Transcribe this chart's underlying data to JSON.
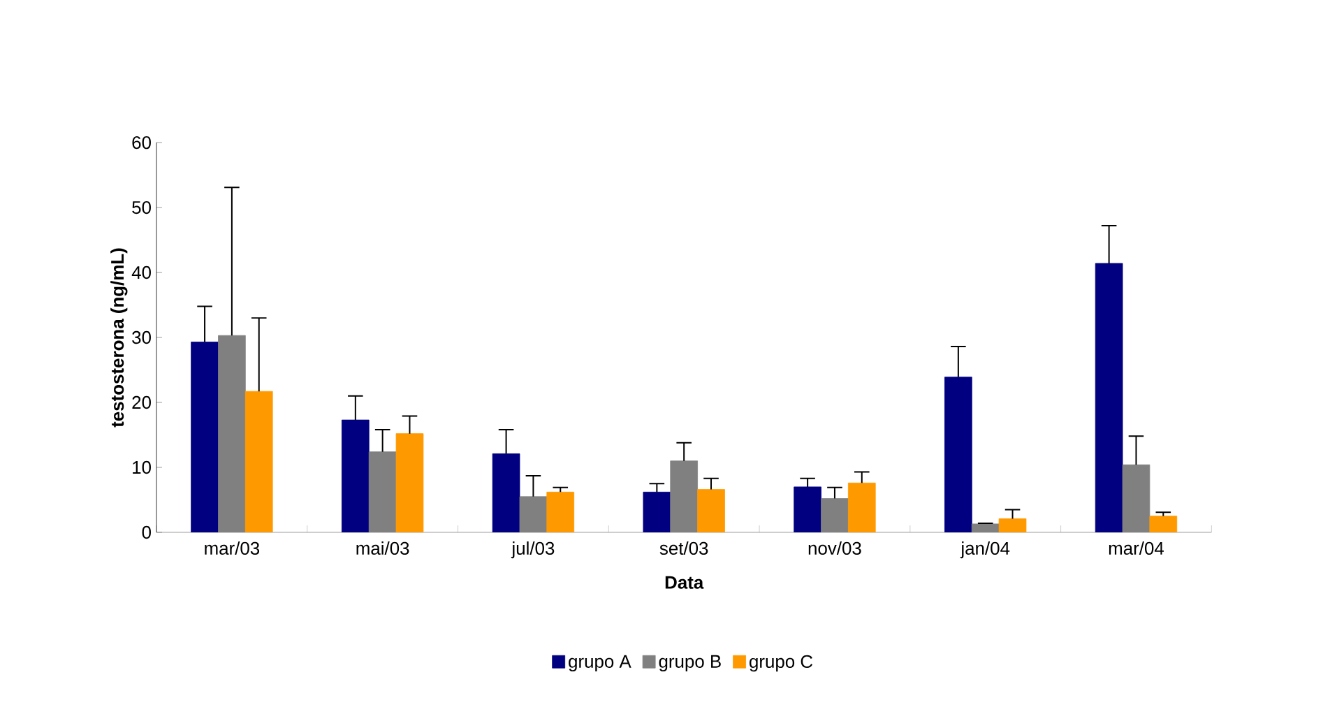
{
  "chart_data": {
    "type": "bar",
    "xlabel": "Data",
    "ylabel": "testosterona (ng/mL)",
    "categories": [
      "mar/03",
      "mai/03",
      "jul/03",
      "set/03",
      "nov/03",
      "jan/04",
      "mar/04"
    ],
    "series": [
      {
        "name": "grupo A",
        "color": "#000080",
        "values": [
          29.3,
          17.3,
          12.1,
          6.2,
          7.0,
          23.9,
          41.4
        ],
        "errors": [
          [
            29.3,
            34.8
          ],
          [
            17.3,
            21.0
          ],
          [
            12.1,
            15.8
          ],
          [
            6.2,
            7.5
          ],
          [
            7.0,
            8.3
          ],
          [
            23.9,
            28.6
          ],
          [
            41.4,
            47.2
          ]
        ]
      },
      {
        "name": "grupo B",
        "color": "#808080",
        "values": [
          30.3,
          12.4,
          5.5,
          11.0,
          5.2,
          1.3,
          10.4
        ],
        "errors": [
          [
            30.3,
            53.1
          ],
          [
            12.4,
            15.8
          ],
          [
            5.5,
            8.7
          ],
          [
            11.0,
            13.8
          ],
          [
            5.2,
            6.9
          ],
          [
            1.3,
            1.4
          ],
          [
            10.4,
            14.8
          ]
        ]
      },
      {
        "name": "grupo C",
        "color": "#ff9900",
        "values": [
          21.7,
          15.2,
          6.2,
          6.6,
          7.6,
          2.1,
          2.5
        ],
        "errors": [
          [
            21.7,
            33.0
          ],
          [
            15.2,
            17.9
          ],
          [
            6.2,
            6.9
          ],
          [
            6.6,
            8.3
          ],
          [
            7.6,
            9.3
          ],
          [
            2.1,
            3.5
          ],
          [
            2.5,
            3.1
          ]
        ]
      }
    ],
    "ylim": [
      0,
      60
    ],
    "yticks": [
      0,
      10,
      20,
      30,
      40,
      50,
      60
    ],
    "grid": false,
    "legend": "bottom"
  }
}
